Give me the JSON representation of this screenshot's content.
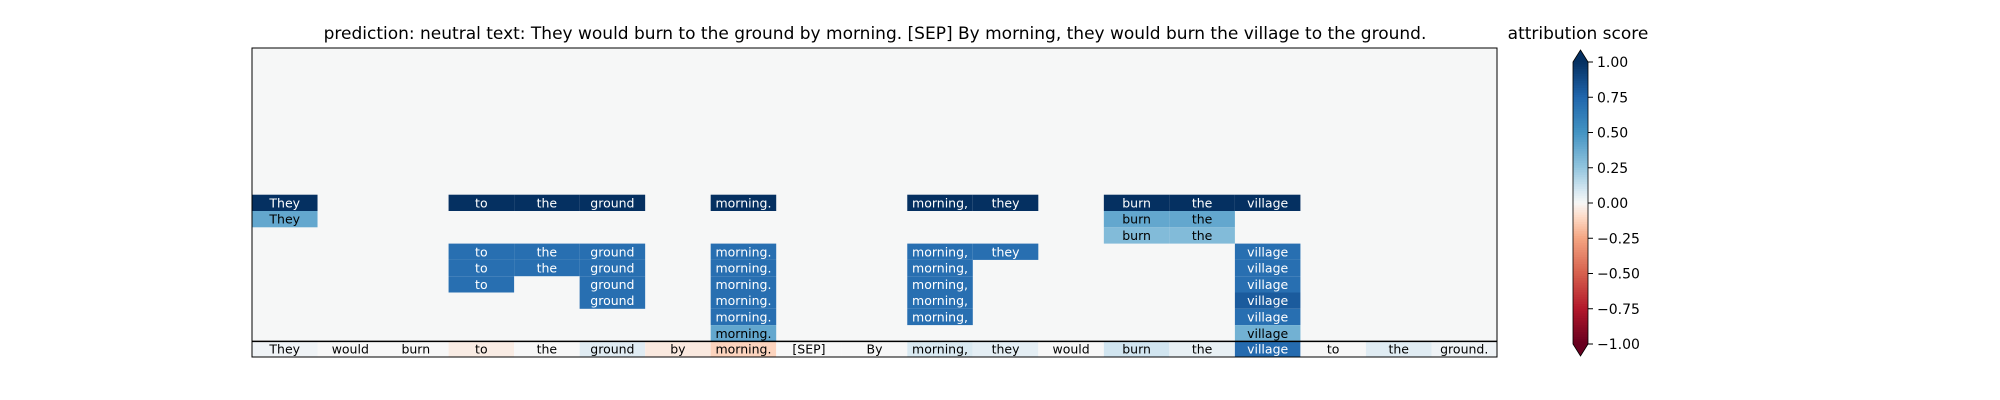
{
  "chart_data": {
    "type": "heatmap",
    "title": "prediction:  neutral     text:  They would burn to the ground by morning. [SEP] By morning, they would burn the village to the ground.",
    "xlabel": "",
    "ylabel": "",
    "tokens": [
      "They",
      "would",
      "burn",
      "to",
      "the",
      "ground",
      "by",
      "morning.",
      "[SEP]",
      "By",
      "morning,",
      "they",
      "would",
      "burn",
      "the",
      "village",
      "to",
      "the",
      "ground."
    ],
    "bottom_row_scores": [
      0.02,
      0.0,
      0.0,
      -0.04,
      0.0,
      0.06,
      -0.05,
      -0.12,
      0.0,
      0.0,
      0.08,
      0.05,
      0.0,
      0.1,
      0.04,
      0.72,
      0.0,
      0.06,
      0.02
    ],
    "rows": [
      {
        "cells": [
          [
            0,
            1.0
          ],
          [
            3,
            1.0
          ],
          [
            4,
            1.0
          ],
          [
            5,
            1.0
          ],
          [
            7,
            1.0
          ],
          [
            10,
            1.0
          ],
          [
            11,
            1.0
          ],
          [
            13,
            1.0
          ],
          [
            14,
            1.0
          ],
          [
            15,
            1.0
          ]
        ]
      },
      {
        "cells": [
          [
            0,
            0.4
          ],
          [
            13,
            0.4
          ],
          [
            14,
            0.4
          ]
        ]
      },
      {
        "cells": [
          [
            13,
            0.3
          ],
          [
            14,
            0.3
          ]
        ]
      },
      {
        "cells": [
          [
            3,
            0.7
          ],
          [
            4,
            0.7
          ],
          [
            5,
            0.7
          ],
          [
            7,
            0.7
          ],
          [
            10,
            0.7
          ],
          [
            11,
            0.7
          ],
          [
            15,
            0.7
          ]
        ]
      },
      {
        "cells": [
          [
            3,
            0.7
          ],
          [
            4,
            0.7
          ],
          [
            5,
            0.7
          ],
          [
            7,
            0.7
          ],
          [
            10,
            0.7
          ],
          [
            15,
            0.7
          ]
        ]
      },
      {
        "cells": [
          [
            3,
            0.7
          ],
          [
            5,
            0.7
          ],
          [
            7,
            0.7
          ],
          [
            10,
            0.7
          ],
          [
            15,
            0.7
          ]
        ]
      },
      {
        "cells": [
          [
            5,
            0.7
          ],
          [
            7,
            0.7
          ],
          [
            10,
            0.7
          ],
          [
            15,
            0.8
          ]
        ]
      },
      {
        "cells": [
          [
            7,
            0.7
          ],
          [
            10,
            0.7
          ],
          [
            15,
            0.7
          ]
        ]
      },
      {
        "cells": [
          [
            7,
            0.4
          ],
          [
            15,
            0.35
          ]
        ]
      }
    ],
    "empty_rows_above": 9,
    "colorbar": {
      "label": "attribution score",
      "range": [
        -1.0,
        1.0
      ],
      "ticks": [
        1.0,
        0.75,
        0.5,
        0.25,
        0.0,
        -0.25,
        -0.5,
        -0.75,
        -1.0
      ],
      "tick_labels": [
        "1.00",
        "0.75",
        "0.50",
        "0.25",
        "0.00",
        "−0.25",
        "−0.50",
        "−0.75",
        "−1.00"
      ],
      "colormap": "RdBu",
      "extend": "both"
    },
    "colors": {
      "empty_cell": "#f6f7f7",
      "frame": "#000000"
    }
  }
}
